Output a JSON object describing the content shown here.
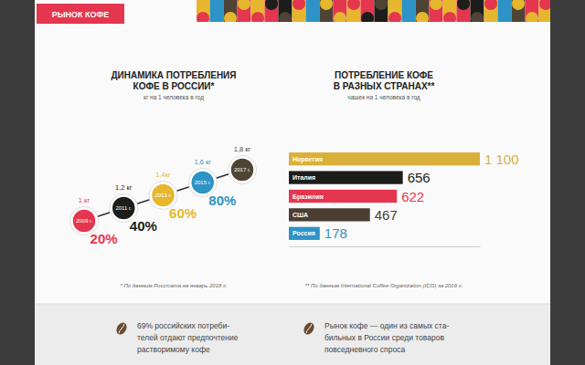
{
  "header": {
    "tab": "РЫНОК КОФЕ"
  },
  "chart_data": [
    {
      "type": "line",
      "title": "ДИНАМИКА ПОТРЕБЛЕНИЯ КОФЕ В РОССИИ*",
      "subtitle": "кг на 1 человека в год",
      "categories": [
        "2009 г.",
        "2011 г.",
        "2013 г.",
        "2015 г.",
        "2017 г."
      ],
      "values": [
        1,
        1.2,
        1.4,
        1.6,
        1.8
      ],
      "value_labels": [
        "1 кг",
        "1,2 кг",
        "1,4кг",
        "1,6 кг",
        "1,8 кг"
      ],
      "colors": [
        "#e5364f",
        "#1d1d1b",
        "#e6b72e",
        "#2e93c7",
        "#4f4434"
      ],
      "ylim": [
        1,
        1.8
      ],
      "tick_labels": false,
      "data_labels": true,
      "marker": "circle",
      "annotations": [
        {
          "text": "20%",
          "color": "#e5364f"
        },
        {
          "text": "40%",
          "color": "#1d1d1b"
        },
        {
          "text": "60%",
          "color": "#e6b72e"
        },
        {
          "text": "80%",
          "color": "#2e93c7"
        }
      ],
      "footnote": "* По данным Росстата на январь 2018 г."
    },
    {
      "type": "bar",
      "orientation": "horizontal",
      "title": "ПОТРЕБЛЕНИЕ КОФЕ В РАЗНЫХ СТРАНАХ**",
      "subtitle": "чашек на 1 человека в год",
      "categories": [
        "Норвегия",
        "Италия",
        "Бразилия",
        "США",
        "Россия"
      ],
      "values": [
        1100,
        656,
        622,
        467,
        178
      ],
      "value_labels": [
        "1 100",
        "656",
        "622",
        "467",
        "178"
      ],
      "colors": [
        "#d9b03a",
        "#1d1d1b",
        "#e5364f",
        "#4a3f32",
        "#2e93c7"
      ],
      "xlim": [
        0,
        1100
      ],
      "tick_labels": false,
      "data_labels": true,
      "footnote": "** По данным International Coffee Organization (ICO) за 2016 г."
    }
  ],
  "notes": [
    {
      "lines": [
        "69% российских потреби-",
        "телей отдают предпочтение",
        "растворимому кофе"
      ]
    },
    {
      "lines": [
        "Рынок кофе — один из самых ста-",
        "бильных в России среди товаров",
        "повседневного спроса"
      ]
    }
  ]
}
